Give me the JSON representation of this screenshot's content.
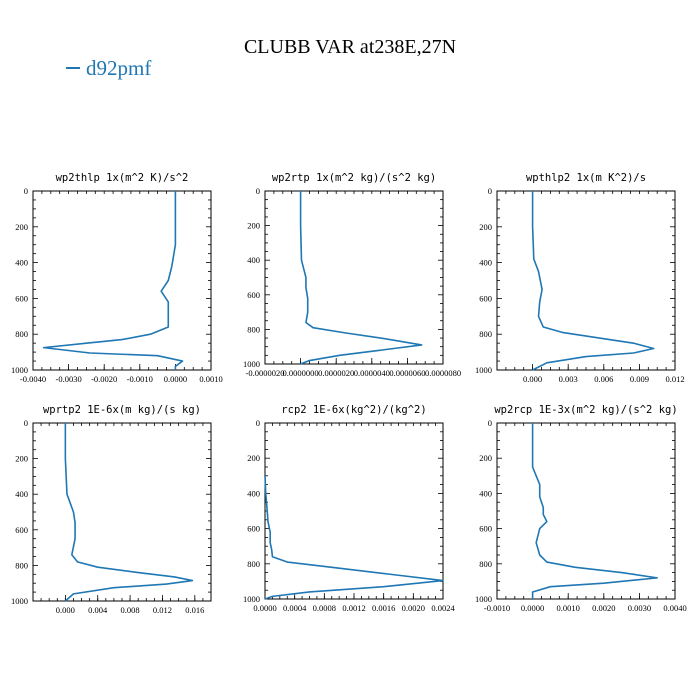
{
  "title": "CLUBB VAR at238E,27N",
  "legend": {
    "series": "d92pmf",
    "color": "#1f77b4"
  },
  "chart_data": [
    {
      "type": "line",
      "title": "wp2thlp  1x(m^2 K)/s^2",
      "xlim": [
        -0.004,
        0.001
      ],
      "ylim": [
        0,
        1000
      ],
      "xticks": [
        "-0.0040",
        "-0.0030",
        "-0.0020",
        "-0.0010",
        "0.0000",
        "0.0010"
      ],
      "xtick_values": [
        -0.004,
        -0.003,
        -0.002,
        -0.001,
        0.0,
        0.001
      ],
      "yticks": [
        "0",
        "200",
        "400",
        "600",
        "800",
        "1000"
      ],
      "ytick_values": [
        0,
        200,
        400,
        600,
        800,
        1000
      ],
      "series": [
        {
          "name": "d92pmf",
          "x": [
            0.0,
            0.0,
            0.0,
            -0.0001,
            -0.0002,
            -0.0004,
            -0.0002,
            -0.0002,
            -0.0002,
            -0.0007,
            -0.0015,
            -0.0025,
            -0.0037,
            -0.0024,
            -0.0005,
            0.0002,
            0.0,
            0.0
          ],
          "y": [
            0,
            150,
            300,
            420,
            500,
            560,
            620,
            720,
            760,
            800,
            830,
            850,
            875,
            905,
            920,
            950,
            980,
            1000
          ]
        }
      ]
    },
    {
      "type": "line",
      "title": "wp2rtp  1x(m^2 kg)/(s^2 kg)",
      "xlim": [
        -2e-06,
        8e-06
      ],
      "ylim": [
        0,
        1000
      ],
      "xticks": [
        "-0.0000020",
        "0.0000000",
        "0.0000020",
        "0.0000040",
        "0.0000060",
        "0.0000080"
      ],
      "xtick_values": [
        -2e-06,
        0.0,
        2e-06,
        4e-06,
        6e-06,
        8e-06
      ],
      "yticks": [
        "0",
        "200",
        "400",
        "600",
        "800",
        "1000"
      ],
      "ytick_values": [
        0,
        200,
        400,
        600,
        800,
        1000
      ],
      "series": [
        {
          "name": "d92pmf",
          "x": [
            0.0,
            0.0,
            5e-08,
            3e-07,
            3e-07,
            4e-07,
            4e-07,
            3e-07,
            7e-07,
            2.5e-06,
            4.5e-06,
            6.8e-06,
            4.5e-06,
            2.2e-06,
            5e-07,
            0.0
          ],
          "y": [
            0,
            200,
            400,
            500,
            560,
            620,
            700,
            760,
            790,
            820,
            850,
            890,
            920,
            950,
            980,
            1000
          ]
        }
      ]
    },
    {
      "type": "line",
      "title": "wpthlp2  1x(m K^2)/s",
      "xlim": [
        -0.003,
        0.012
      ],
      "ylim": [
        0,
        1000
      ],
      "xticks": [
        "0.000",
        "0.003",
        "0.006",
        "0.009",
        "0.012"
      ],
      "xtick_values": [
        0.0,
        0.003,
        0.006,
        0.009,
        0.012
      ],
      "yticks": [
        "0",
        "200",
        "400",
        "600",
        "800",
        "1000"
      ],
      "ytick_values": [
        0,
        200,
        400,
        600,
        800,
        1000
      ],
      "series": [
        {
          "name": "d92pmf",
          "x": [
            0.0,
            0.0,
            0.0001,
            0.0005,
            0.0008,
            0.0006,
            0.0005,
            0.0009,
            0.0025,
            0.0055,
            0.0085,
            0.0102,
            0.0085,
            0.0045,
            0.0012,
            0.0
          ],
          "y": [
            0,
            200,
            380,
            450,
            550,
            620,
            700,
            760,
            790,
            820,
            850,
            880,
            905,
            925,
            960,
            1000
          ]
        }
      ]
    },
    {
      "type": "line",
      "title": "wprtp2  1E-6x(m kg)/(s kg)",
      "xlim": [
        -0.004,
        0.018
      ],
      "ylim": [
        0,
        1000
      ],
      "xticks": [
        "0.000",
        "0.004",
        "0.008",
        "0.012",
        "0.016"
      ],
      "xtick_values": [
        0.0,
        0.004,
        0.008,
        0.012,
        0.016
      ],
      "yticks": [
        "0",
        "200",
        "400",
        "600",
        "800",
        "1000"
      ],
      "ytick_values": [
        0,
        200,
        400,
        600,
        800,
        1000
      ],
      "series": [
        {
          "name": "d92pmf",
          "x": [
            0.0,
            0.0,
            0.0002,
            0.001,
            0.0012,
            0.0012,
            0.0008,
            0.0015,
            0.004,
            0.009,
            0.0135,
            0.0157,
            0.0125,
            0.006,
            0.001,
            0.0
          ],
          "y": [
            0,
            200,
            400,
            500,
            560,
            650,
            740,
            780,
            810,
            840,
            865,
            885,
            905,
            925,
            960,
            1000
          ]
        }
      ]
    },
    {
      "type": "line",
      "title": "rcp2  1E-6x(kg^2)/(kg^2)",
      "xlim": [
        0.0,
        0.0024
      ],
      "ylim": [
        0,
        1000
      ],
      "xticks": [
        "0.0000",
        "0.0004",
        "0.0008",
        "0.0012",
        "0.0016",
        "0.0020",
        "0.0024"
      ],
      "xtick_values": [
        0.0,
        0.0004,
        0.0008,
        0.0012,
        0.0016,
        0.002,
        0.0024
      ],
      "yticks": [
        "0",
        "200",
        "400",
        "600",
        "800",
        "1000"
      ],
      "ytick_values": [
        0,
        200,
        400,
        600,
        800,
        1000
      ],
      "series": [
        {
          "name": "d92pmf",
          "x": [
            0.0,
            1e-05,
            3e-05,
            4e-05,
            7e-05,
            7e-05,
            9e-05,
            0.0001,
            0.0003,
            0.0009,
            0.0017,
            0.0024,
            0.0016,
            0.0006,
            0.0001,
            0.0
          ],
          "y": [
            300,
            400,
            500,
            560,
            620,
            680,
            720,
            760,
            790,
            820,
            860,
            895,
            930,
            960,
            985,
            1000
          ]
        }
      ]
    },
    {
      "type": "line",
      "title": "wp2rcp  1E-3x(m^2 kg)/(s^2 kg)",
      "xlim": [
        -0.001,
        0.004
      ],
      "ylim": [
        0,
        1000
      ],
      "xticks": [
        "-0.0010",
        "0.0000",
        "0.0010",
        "0.0020",
        "0.0030",
        "0.0040"
      ],
      "xtick_values": [
        -0.001,
        0.0,
        0.001,
        0.002,
        0.003,
        0.004
      ],
      "yticks": [
        "0",
        "200",
        "400",
        "600",
        "800",
        "1000"
      ],
      "ytick_values": [
        0,
        200,
        400,
        600,
        800,
        1000
      ],
      "series": [
        {
          "name": "d92pmf",
          "x": [
            0.0,
            0.0,
            0.0002,
            0.0002,
            0.0003,
            0.0003,
            0.0004,
            0.0002,
            0.0001,
            0.0002,
            0.0004,
            0.0012,
            0.0025,
            0.0035,
            0.002,
            0.0005,
            0.0,
            0.0
          ],
          "y": [
            0,
            250,
            350,
            420,
            480,
            520,
            560,
            600,
            680,
            750,
            790,
            820,
            850,
            880,
            910,
            930,
            960,
            1000
          ]
        }
      ]
    }
  ]
}
